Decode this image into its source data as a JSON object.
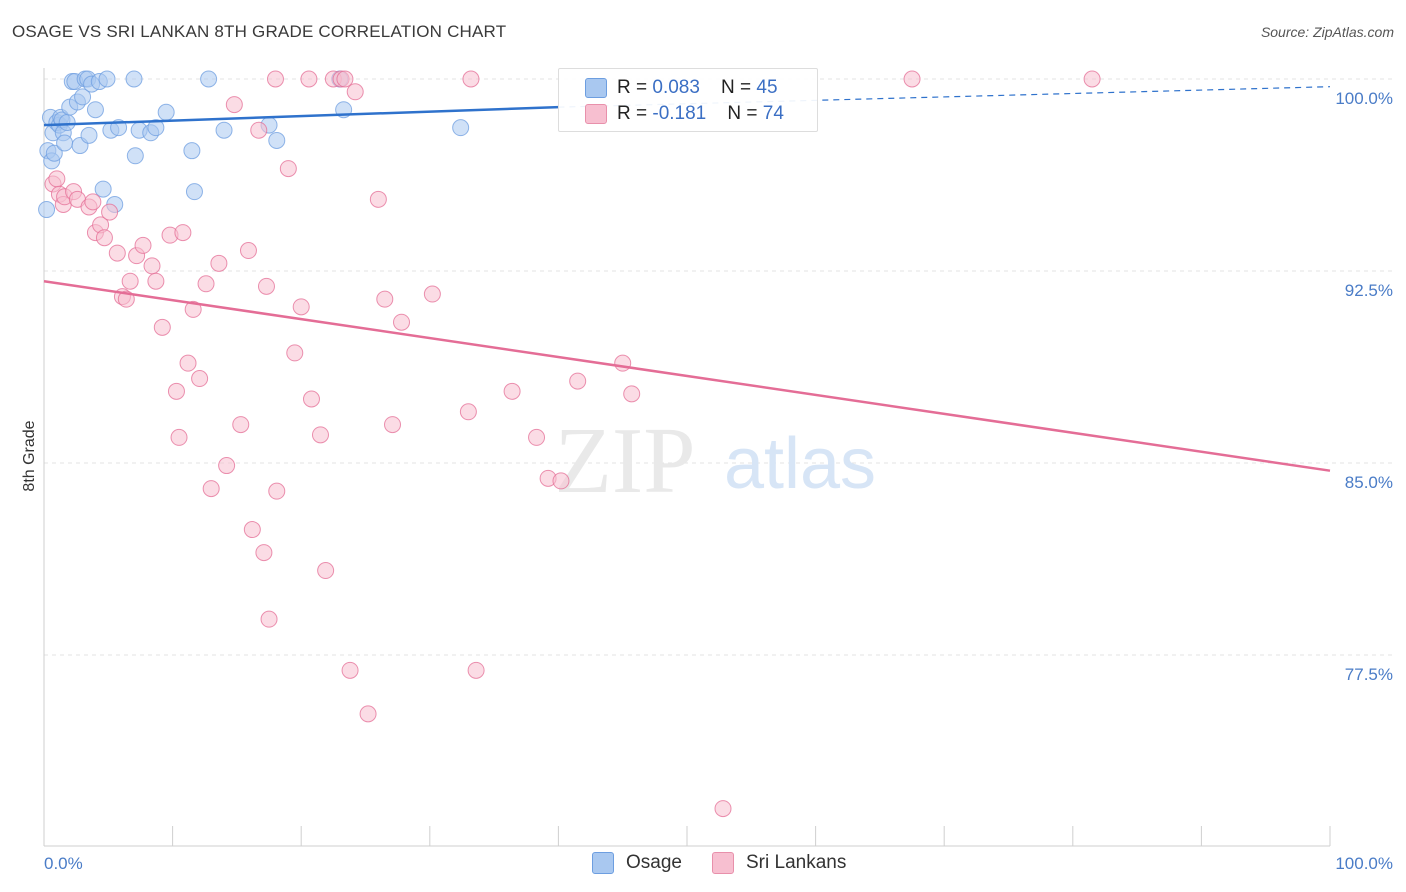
{
  "header": {
    "title": "OSAGE VS SRI LANKAN 8TH GRADE CORRELATION CHART",
    "source": "Source: ZipAtlas.com"
  },
  "watermark": {
    "zip": "ZIP",
    "atlas": "atlas"
  },
  "legend": {
    "items": [
      {
        "r_label": "R = ",
        "r_value": "0.083",
        "n_label": "N = ",
        "n_value": "45",
        "color": "#a9c8f0",
        "border": "#6d9ee0"
      },
      {
        "r_label": "R = ",
        "r_value": "-0.181",
        "n_label": "N = ",
        "n_value": "74",
        "color": "#f7bfd0",
        "border": "#e890ab"
      }
    ]
  },
  "bottom_legend": [
    {
      "label": "Osage",
      "color": "#a9c8f0",
      "border": "#6d9ee0"
    },
    {
      "label": "Sri Lankans",
      "color": "#f7bfd0",
      "border": "#e890ab"
    }
  ],
  "chart_data": {
    "type": "scatter",
    "title": "OSAGE VS SRI LANKAN 8TH GRADE CORRELATION CHART",
    "xlabel": "",
    "ylabel": "8th Grade",
    "xlim": [
      0,
      100
    ],
    "ylim": [
      71.5,
      100.3
    ],
    "x_tick_labels": [
      "0.0%",
      "100.0%"
    ],
    "y_ticks": [
      100.0,
      92.5,
      85.0,
      77.5
    ],
    "y_tick_labels": [
      "100.0%",
      "92.5%",
      "85.0%",
      "77.5%"
    ],
    "grid": true,
    "series": [
      {
        "name": "Osage",
        "color": "#6d9ee0",
        "fill": "#a9c8f0",
        "trend": {
          "x0": 0,
          "y0": 98.2,
          "x1": 40,
          "y1": 98.9,
          "x_dash_end": 100,
          "y_dash_end": 99.7
        },
        "points": [
          [
            0.2,
            94.9
          ],
          [
            0.3,
            97.2
          ],
          [
            0.5,
            98.5
          ],
          [
            0.6,
            96.8
          ],
          [
            0.7,
            97.9
          ],
          [
            0.8,
            97.1
          ],
          [
            1.0,
            98.3
          ],
          [
            1.2,
            98.2
          ],
          [
            1.3,
            98.5
          ],
          [
            1.4,
            98.4
          ],
          [
            1.5,
            97.9
          ],
          [
            1.6,
            97.5
          ],
          [
            1.8,
            98.3
          ],
          [
            2.0,
            98.9
          ],
          [
            2.2,
            99.9
          ],
          [
            2.4,
            99.9
          ],
          [
            2.6,
            99.1
          ],
          [
            2.8,
            97.4
          ],
          [
            3.0,
            99.3
          ],
          [
            3.2,
            100.0
          ],
          [
            3.4,
            100.0
          ],
          [
            3.5,
            97.8
          ],
          [
            3.7,
            99.8
          ],
          [
            4.0,
            98.8
          ],
          [
            4.3,
            99.9
          ],
          [
            4.6,
            95.7
          ],
          [
            4.9,
            100.0
          ],
          [
            5.2,
            98.0
          ],
          [
            5.5,
            95.1
          ],
          [
            5.8,
            98.1
          ],
          [
            7.0,
            100.0
          ],
          [
            7.1,
            97.0
          ],
          [
            7.4,
            98.0
          ],
          [
            8.3,
            97.9
          ],
          [
            8.7,
            98.1
          ],
          [
            9.5,
            98.7
          ],
          [
            11.5,
            97.2
          ],
          [
            11.7,
            95.6
          ],
          [
            12.8,
            100.0
          ],
          [
            14.0,
            98.0
          ],
          [
            17.5,
            98.2
          ],
          [
            18.1,
            97.6
          ],
          [
            23.0,
            100.0
          ],
          [
            23.3,
            98.8
          ],
          [
            32.4,
            98.1
          ]
        ]
      },
      {
        "name": "Sri Lankans",
        "color": "#e46d96",
        "fill": "#f7bfd0",
        "trend": {
          "x0": 0,
          "y0": 92.1,
          "x1": 100,
          "y1": 84.7
        },
        "points": [
          [
            0.7,
            95.9
          ],
          [
            1.0,
            96.1
          ],
          [
            1.2,
            95.5
          ],
          [
            1.5,
            95.1
          ],
          [
            1.6,
            95.4
          ],
          [
            2.3,
            95.6
          ],
          [
            2.6,
            95.3
          ],
          [
            3.5,
            95.0
          ],
          [
            3.8,
            95.2
          ],
          [
            4.0,
            94.0
          ],
          [
            4.4,
            94.3
          ],
          [
            4.7,
            93.8
          ],
          [
            5.1,
            94.8
          ],
          [
            5.7,
            93.2
          ],
          [
            6.1,
            91.5
          ],
          [
            6.4,
            91.4
          ],
          [
            6.7,
            92.1
          ],
          [
            7.2,
            93.1
          ],
          [
            7.7,
            93.5
          ],
          [
            8.4,
            92.7
          ],
          [
            8.7,
            92.1
          ],
          [
            9.2,
            90.3
          ],
          [
            9.8,
            93.9
          ],
          [
            10.3,
            87.8
          ],
          [
            10.5,
            86.0
          ],
          [
            10.8,
            94.0
          ],
          [
            11.2,
            88.9
          ],
          [
            11.6,
            91.0
          ],
          [
            12.1,
            88.3
          ],
          [
            12.6,
            92.0
          ],
          [
            13.0,
            84.0
          ],
          [
            13.6,
            92.8
          ],
          [
            14.2,
            84.9
          ],
          [
            14.8,
            99.0
          ],
          [
            15.3,
            86.5
          ],
          [
            15.9,
            93.3
          ],
          [
            16.2,
            82.4
          ],
          [
            16.7,
            98.0
          ],
          [
            17.1,
            81.5
          ],
          [
            17.3,
            91.9
          ],
          [
            17.5,
            78.9
          ],
          [
            18.1,
            83.9
          ],
          [
            19.0,
            96.5
          ],
          [
            19.5,
            89.3
          ],
          [
            20.0,
            91.1
          ],
          [
            20.6,
            100.0
          ],
          [
            20.8,
            87.5
          ],
          [
            21.5,
            86.1
          ],
          [
            21.9,
            80.8
          ],
          [
            22.5,
            100.0
          ],
          [
            23.1,
            100.0
          ],
          [
            23.4,
            100.0
          ],
          [
            23.8,
            76.9
          ],
          [
            24.2,
            99.5
          ],
          [
            25.2,
            75.2
          ],
          [
            26.0,
            95.3
          ],
          [
            26.5,
            91.4
          ],
          [
            27.1,
            86.5
          ],
          [
            27.8,
            90.5
          ],
          [
            30.2,
            91.6
          ],
          [
            33.0,
            87.0
          ],
          [
            33.2,
            100.0
          ],
          [
            33.6,
            76.9
          ],
          [
            36.4,
            87.8
          ],
          [
            38.3,
            86.0
          ],
          [
            39.2,
            84.4
          ],
          [
            40.2,
            84.3
          ],
          [
            41.5,
            88.2
          ],
          [
            45.0,
            88.9
          ],
          [
            45.7,
            87.7
          ],
          [
            52.8,
            71.5
          ],
          [
            67.5,
            100.0
          ],
          [
            81.5,
            100.0
          ],
          [
            18.0,
            100.0
          ]
        ]
      }
    ]
  }
}
